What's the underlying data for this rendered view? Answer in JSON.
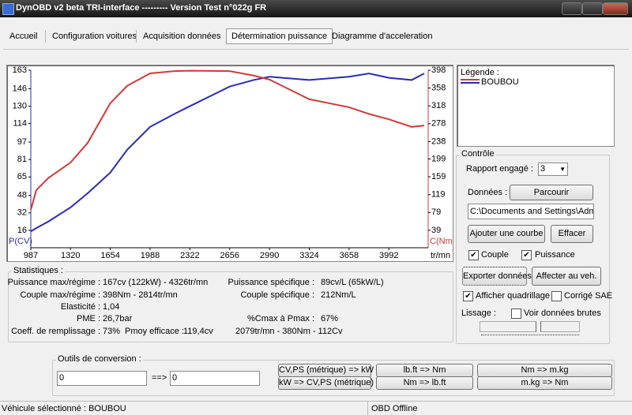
{
  "window": {
    "title": "DynOBD v2 beta TRI-interface --------- Version Test n°022g FR"
  },
  "tabs": [
    "Accueil",
    "Configuration voitures",
    "Acquisition données",
    "Détermination puissance",
    "Diagramme d'acceleration"
  ],
  "chart_data": {
    "type": "line",
    "xlabel": "tr/mn",
    "ylabel": "P(CV)",
    "y2label": "C(Nm)",
    "x": [
      987,
      1033,
      1133,
      1320,
      1464,
      1654,
      1796,
      1988,
      2194,
      2322,
      2656,
      2857,
      2990,
      3324,
      3658,
      3825,
      3992,
      4183,
      4289
    ],
    "xlim": [
      987,
      4322
    ],
    "xticks": [
      987,
      1320,
      1654,
      1988,
      2322,
      2656,
      2990,
      3324,
      3658,
      3992
    ],
    "ylim": [
      0,
      163
    ],
    "yticks": [
      16,
      32,
      48,
      65,
      81,
      97,
      114,
      130,
      146,
      163
    ],
    "y2lim": [
      0,
      398
    ],
    "y2ticks": [
      39,
      79,
      119,
      159,
      199,
      238,
      278,
      318,
      358,
      398
    ],
    "series": [
      {
        "color": "#2b2bb8",
        "values": [
          15,
          18,
          24,
          37,
          50,
          69,
          90,
          111,
          123,
          130,
          148,
          154,
          157,
          154,
          157,
          160,
          156,
          154,
          160
        ]
      },
      {
        "color": "#d03a3a",
        "axis": "y2",
        "values": [
          85,
          129,
          156,
          191,
          235,
          324,
          363,
          391,
          396,
          397,
          396,
          386,
          377,
          333,
          315,
          300,
          288,
          271,
          274
        ]
      }
    ]
  },
  "legend": {
    "title": "Légende :",
    "entries": [
      "BOUBOU"
    ]
  },
  "statistics": {
    "title": "Statistiques :",
    "left": [
      [
        "Puissance max/régime :",
        "167cv (122kW) - 4326tr/mn"
      ],
      [
        "Couple max/régime :",
        "398Nm - 2814tr/mn"
      ],
      [
        "Elasticité :",
        "1,04"
      ],
      [
        "PME :",
        "26,7bar"
      ],
      [
        "Coeff. de remplissage :",
        "73%"
      ]
    ],
    "pmoy": [
      "Pmoy efficace :",
      "119,4cv"
    ],
    "right": [
      [
        "Puissance spécifique :",
        "89cv/L (65kW/L)"
      ],
      [
        "Couple spécifique :",
        "212Nm/L"
      ],
      [
        "%Cmax à Pmax :",
        "67%"
      ]
    ],
    "pmax_point": "2079tr/mn - 380Nm - 112Cv"
  },
  "control": {
    "title": "Contrôle",
    "gear_label": "Rapport engagé :",
    "gear": 3,
    "data_label": "Données :",
    "browse": "Parcourir",
    "path": "C:\\Documents and Settings\\Admir",
    "add_curve": "Ajouter une courbe",
    "clear": "Effacer",
    "torque": {
      "label": "Couple",
      "checked": true
    },
    "power": {
      "label": "Puissance",
      "checked": true
    },
    "export": "Exporter données",
    "assign": "Affecter au veh.",
    "grid": {
      "label": "Afficher quadrillage",
      "checked": true
    },
    "sae": {
      "label": "Corrigé SAE",
      "checked": false
    },
    "smoothing_label": "Lissage :",
    "raw": {
      "label": "Voir données brutes",
      "checked": false
    }
  },
  "conversion": {
    "title": "Outils de conversion :",
    "input": "0",
    "arrow": "==>",
    "output": "0",
    "buttons": [
      "CV,PS (métrique) => kW",
      "kW => CV,PS (métrique)",
      "lb.ft => Nm",
      "Nm => lb.ft",
      "Nm => m.kg",
      "m.kg => Nm"
    ]
  },
  "status_bar": [
    "Véhicule sélectionné : BOUBOU",
    "OBD Offline"
  ]
}
